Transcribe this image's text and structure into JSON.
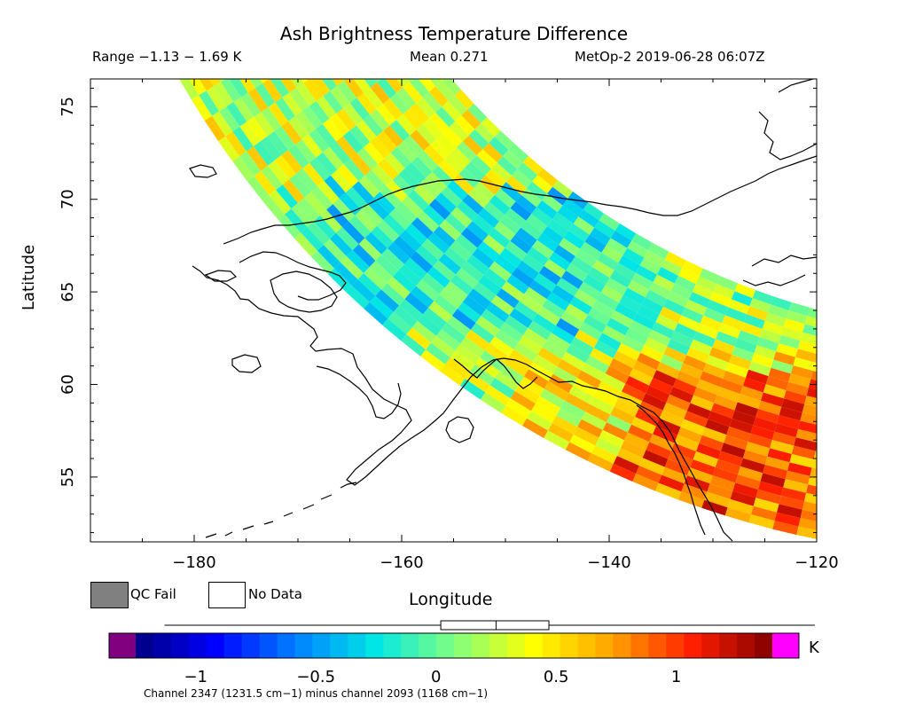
{
  "header": {
    "title": "Ash Brightness Temperature Difference",
    "range": "Range −1.13 − 1.69 K",
    "mean": "Mean 0.271",
    "stamp": "MetOp-2 2019-06-28 06:07Z"
  },
  "map": {
    "xlabel": "Longitude",
    "ylabel": "Latitude",
    "lon_range": [
      -190,
      -120
    ],
    "lat_range": [
      51.5,
      76.5
    ],
    "x_ticks": [
      -180,
      -160,
      -140,
      -120
    ],
    "y_ticks": [
      55,
      60,
      65,
      70,
      75
    ],
    "x_tick_labels": [
      "−180",
      "−160",
      "−140",
      "−120"
    ],
    "y_tick_labels": [
      "55",
      "60",
      "65",
      "70",
      "75"
    ]
  },
  "legend": {
    "qc_fail": "QC Fail",
    "no_data": "No Data",
    "qc_fail_color": "#808080",
    "no_data_color": "#ffffff"
  },
  "colorbar": {
    "vmin": -1.25,
    "vmax": 1.4,
    "ticks": [
      -1,
      -0.5,
      0,
      0.5,
      1
    ],
    "tick_labels": [
      "−1",
      "−0.5",
      "0",
      "0.5",
      "1"
    ],
    "units": "K",
    "underflow_color": "#800080",
    "overflow_color": "#ff00ff",
    "boxplot": {
      "min": -1.13,
      "q1": 0.02,
      "median": 0.25,
      "q3": 0.47,
      "max": 1.69
    }
  },
  "footnote": "Channel 2347 (1231.5 cm−1) minus channel 2093 (1168 cm−1)"
}
